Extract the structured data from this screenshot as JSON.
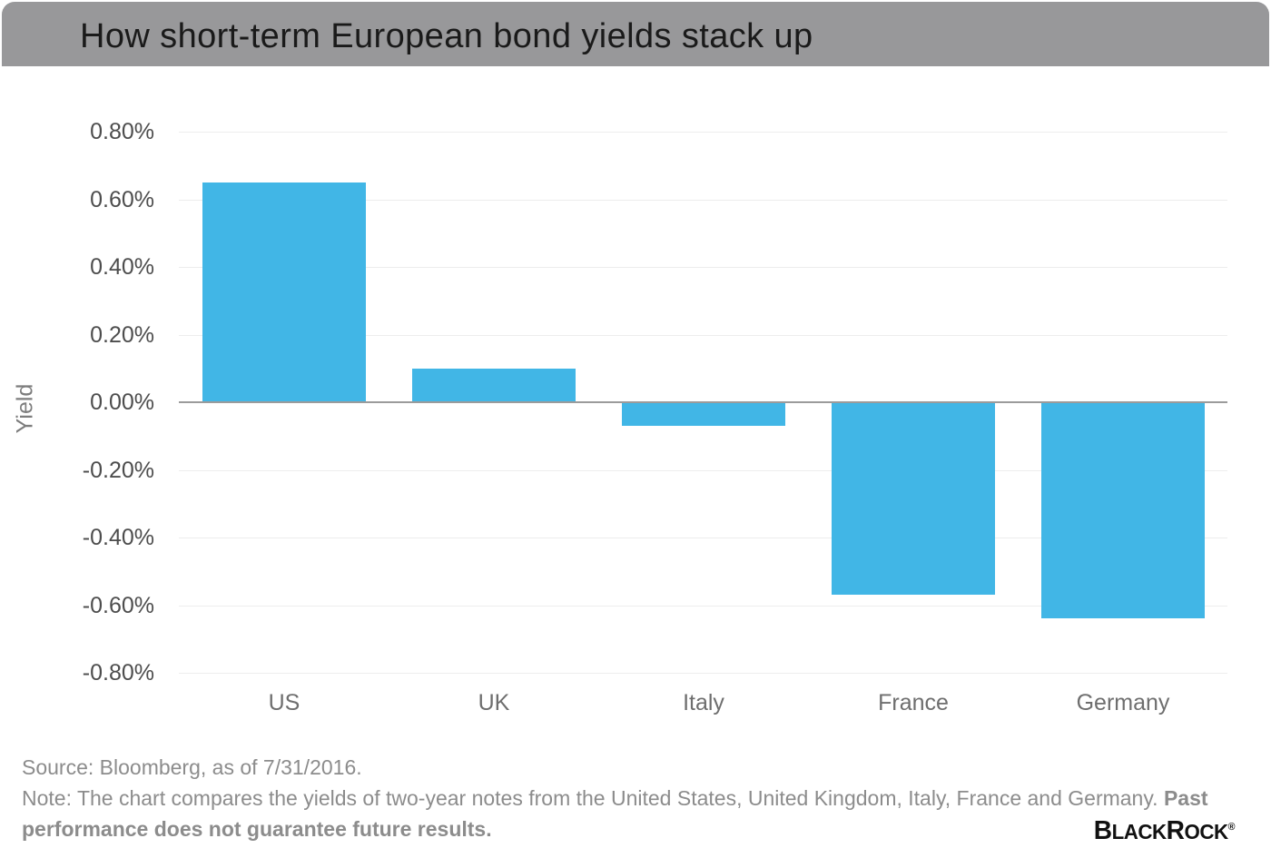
{
  "header": {
    "title": "How short-term European bond yields stack up"
  },
  "chart_data": {
    "type": "bar",
    "title": "How short-term European bond yields stack up",
    "categories": [
      "US",
      "UK",
      "Italy",
      "France",
      "Germany"
    ],
    "values": [
      0.65,
      0.1,
      -0.07,
      -0.57,
      -0.64
    ],
    "unit": "%",
    "xlabel": "",
    "ylabel": "Yield",
    "ylim": [
      -0.8,
      0.8
    ],
    "ytick_values": [
      0.8,
      0.6,
      0.4,
      0.2,
      0,
      -0.2,
      -0.4,
      -0.6,
      -0.8
    ],
    "ytick_labels": [
      "0.80%",
      "0.60%",
      "0.40%",
      "0.20%",
      "0.00%",
      "-0.20%",
      "-0.40%",
      "-0.60%",
      "-0.80%"
    ],
    "grid": true,
    "legend": false,
    "bar_color": "#41b6e6"
  },
  "footer": {
    "source_line": "Source: Bloomberg, as of 7/31/2016.",
    "note_text": "Note: The chart compares the yields of two-year notes from the United States, United Kingdom, Italy, France and Germany. ",
    "note_bold": "Past performance does not guarantee future results.",
    "brand": {
      "b1": "B",
      "rest1": "LACK",
      "b2": "R",
      "rest2": "OCK",
      "reg": "®"
    }
  },
  "colors": {
    "header_bg": "#98989a",
    "title": "#1a1a1a",
    "bar": "#41b6e6",
    "grid": "#ededed",
    "zero_line": "#9b9b9b",
    "ytick": "#4d4d4d",
    "category": "#6e6e6e",
    "ylabel": "#7d7d7d",
    "footer": "#8c8c8c",
    "logo": "#111111"
  }
}
